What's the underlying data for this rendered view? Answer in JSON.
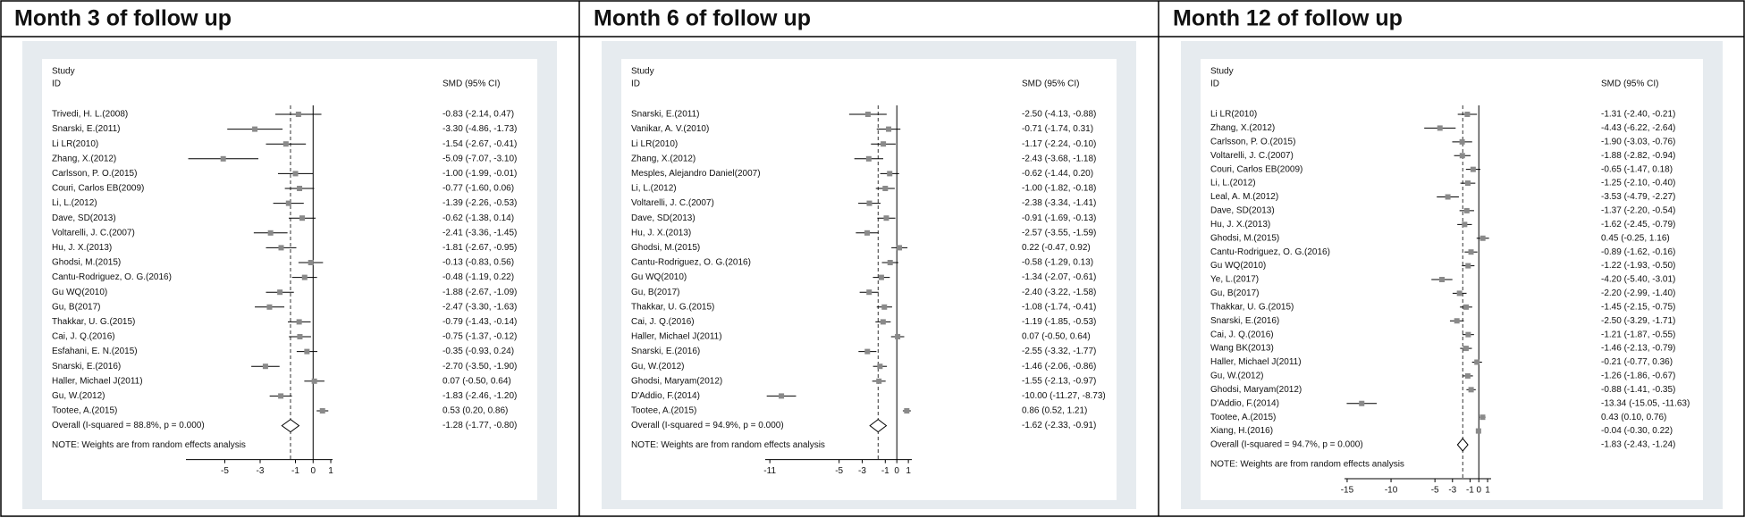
{
  "chart_data": [
    {
      "type": "forest",
      "title": "Month 3 of follow up",
      "study_header": "Study",
      "id_header": "ID",
      "effect_header": "SMD (95% CI)",
      "note": "NOTE: Weights are from random effects analysis",
      "categories": [
        "Trivedi, H. L.(2008)",
        "Snarski, E.(2011)",
        "Li LR(2010)",
        "Zhang, X.(2012)",
        "Carlsson, P. O.(2015)",
        "Couri, Carlos EB(2009)",
        "Li, L.(2012)",
        "Dave, SD(2013)",
        "Voltarelli, J. C.(2007)",
        "Hu, J. X.(2013)",
        "Ghodsi, M.(2015)",
        "Cantu-Rodriguez, O. G.(2016)",
        "Gu WQ(2010)",
        "Gu, B(2017)",
        "Thakkar, U. G.(2015)",
        "Cai, J. Q.(2016)",
        "Esfahani, E. N.(2015)",
        "Snarski, E.(2016)",
        "Haller, Michael J(2011)",
        "Gu, W.(2012)",
        "Tootee, A.(2015)"
      ],
      "values": [
        -0.83,
        -3.3,
        -1.54,
        -5.09,
        -1.0,
        -0.77,
        -1.39,
        -0.62,
        -2.41,
        -1.81,
        -0.13,
        -0.48,
        -1.88,
        -2.47,
        -0.79,
        -0.75,
        -0.35,
        -2.7,
        0.07,
        -1.83,
        0.53
      ],
      "lower": [
        -2.14,
        -4.86,
        -2.67,
        -7.07,
        -1.99,
        -1.6,
        -2.26,
        -1.38,
        -3.36,
        -2.67,
        -0.83,
        -1.19,
        -2.67,
        -3.3,
        -1.43,
        -1.37,
        -0.93,
        -3.5,
        -0.5,
        -2.46,
        0.2
      ],
      "upper": [
        0.47,
        -1.73,
        -0.41,
        -3.1,
        -0.01,
        0.06,
        -0.53,
        0.14,
        -1.45,
        -0.95,
        0.56,
        0.22,
        -1.09,
        -1.63,
        -0.14,
        -0.12,
        0.24,
        -1.9,
        0.64,
        -1.2,
        0.86
      ],
      "value_labels": [
        "-0.83 (-2.14, 0.47)",
        "-3.30 (-4.86, -1.73)",
        "-1.54 (-2.67, -0.41)",
        "-5.09 (-7.07, -3.10)",
        "-1.00 (-1.99, -0.01)",
        "-0.77 (-1.60, 0.06)",
        "-1.39 (-2.26, -0.53)",
        "-0.62 (-1.38, 0.14)",
        "-2.41 (-3.36, -1.45)",
        "-1.81 (-2.67, -0.95)",
        "-0.13 (-0.83, 0.56)",
        "-0.48 (-1.19, 0.22)",
        "-1.88 (-2.67, -1.09)",
        "-2.47 (-3.30, -1.63)",
        "-0.79 (-1.43, -0.14)",
        "-0.75 (-1.37, -0.12)",
        "-0.35 (-0.93, 0.24)",
        "-2.70 (-3.50, -1.90)",
        "0.07 (-0.50, 0.64)",
        "-1.83 (-2.46, -1.20)",
        "0.53 (0.20, 0.86)"
      ],
      "overall_label": "Overall  (I-squared = 88.8%, p = 0.000)",
      "overall_value": -1.28,
      "overall_lower": -1.77,
      "overall_upper": -0.8,
      "overall_value_label": "-1.28 (-1.77, -0.80)",
      "xlim": [
        -7.2,
        1.1
      ],
      "xticks": [
        -5,
        -3,
        -1,
        0,
        1
      ]
    },
    {
      "type": "forest",
      "title": "Month 6 of follow up",
      "study_header": "Study",
      "id_header": "ID",
      "effect_header": "SMD (95% CI)",
      "note": "NOTE: Weights are from random effects analysis",
      "categories": [
        "Snarski, E.(2011)",
        "Vanikar, A. V.(2010)",
        "Li LR(2010)",
        "Zhang, X.(2012)",
        "Mesples, Alejandro Daniel(2007)",
        "Li, L.(2012)",
        "Voltarelli, J. C.(2007)",
        "Dave, SD(2013)",
        "Hu, J. X.(2013)",
        "Ghodsi, M.(2015)",
        "Cantu-Rodriguez, O. G.(2016)",
        "Gu WQ(2010)",
        "Gu, B(2017)",
        "Thakkar, U. G.(2015)",
        "Cai, J. Q.(2016)",
        "Haller, Michael J(2011)",
        "Snarski, E.(2016)",
        "Gu, W.(2012)",
        "Ghodsi, Maryam(2012)",
        "D'Addio, F.(2014)",
        "Tootee, A.(2015)"
      ],
      "values": [
        -2.5,
        -0.71,
        -1.17,
        -2.43,
        -0.62,
        -1.0,
        -2.38,
        -0.91,
        -2.57,
        0.22,
        -0.58,
        -1.34,
        -2.4,
        -1.08,
        -1.19,
        0.07,
        -2.55,
        -1.46,
        -1.55,
        -10.0,
        0.86
      ],
      "lower": [
        -4.13,
        -1.74,
        -2.24,
        -3.68,
        -1.44,
        -1.82,
        -3.34,
        -1.69,
        -3.55,
        -0.47,
        -1.29,
        -2.07,
        -3.22,
        -1.74,
        -1.85,
        -0.5,
        -3.32,
        -2.06,
        -2.13,
        -11.27,
        0.52
      ],
      "upper": [
        -0.88,
        0.31,
        -0.1,
        -1.18,
        0.2,
        -0.18,
        -1.41,
        -0.13,
        -1.59,
        0.92,
        0.13,
        -0.61,
        -1.58,
        -0.41,
        -0.53,
        0.64,
        -1.77,
        -0.86,
        -0.97,
        -8.73,
        1.21
      ],
      "value_labels": [
        "-2.50 (-4.13, -0.88)",
        "-0.71 (-1.74, 0.31)",
        "-1.17 (-2.24, -0.10)",
        "-2.43 (-3.68, -1.18)",
        "-0.62 (-1.44, 0.20)",
        "-1.00 (-1.82, -0.18)",
        "-2.38 (-3.34, -1.41)",
        "-0.91 (-1.69, -0.13)",
        "-2.57 (-3.55, -1.59)",
        "0.22 (-0.47, 0.92)",
        "-0.58 (-1.29, 0.13)",
        "-1.34 (-2.07, -0.61)",
        "-2.40 (-3.22, -1.58)",
        "-1.08 (-1.74, -0.41)",
        "-1.19 (-1.85, -0.53)",
        "0.07 (-0.50, 0.64)",
        "-2.55 (-3.32, -1.77)",
        "-1.46 (-2.06, -0.86)",
        "-1.55 (-2.13, -0.97)",
        "-10.00 (-11.27, -8.73)",
        "0.86 (0.52, 1.21)"
      ],
      "overall_label": "Overall  (I-squared = 94.9%, p = 0.000)",
      "overall_value": -1.62,
      "overall_lower": -2.33,
      "overall_upper": -0.91,
      "overall_value_label": "-1.62 (-2.33, -0.91)",
      "xlim": [
        -11.4,
        1.3
      ],
      "xticks": [
        -11,
        -5,
        -3,
        -1,
        0,
        1
      ]
    },
    {
      "type": "forest",
      "title": "Month 12 of follow up",
      "study_header": "Study",
      "id_header": "ID",
      "effect_header": "SMD (95% CI)",
      "note": "NOTE: Weights are from random effects analysis",
      "categories": [
        "Li LR(2010)",
        "Zhang, X.(2012)",
        "Carlsson, P. O.(2015)",
        "Voltarelli, J. C.(2007)",
        "Couri, Carlos EB(2009)",
        "Li, L.(2012)",
        "Leal, A. M.(2012)",
        "Dave, SD(2013)",
        "Hu, J. X.(2013)",
        "Ghodsi, M.(2015)",
        "Cantu-Rodriguez, O. G.(2016)",
        "Gu WQ(2010)",
        "Ye, L.(2017)",
        "Gu, B(2017)",
        "Thakkar, U. G.(2015)",
        "Snarski, E.(2016)",
        "Cai, J. Q.(2016)",
        "Wang BK(2013)",
        "Haller, Michael J(2011)",
        "Gu, W.(2012)",
        "Ghodsi, Maryam(2012)",
        "D'Addio, F.(2014)",
        "Tootee, A.(2015)",
        "Xiang, H.(2016)"
      ],
      "values": [
        -1.31,
        -4.43,
        -1.9,
        -1.88,
        -0.65,
        -1.25,
        -3.53,
        -1.37,
        -1.62,
        0.45,
        -0.89,
        -1.22,
        -4.2,
        -2.2,
        -1.45,
        -2.5,
        -1.21,
        -1.46,
        -0.21,
        -1.26,
        -0.88,
        -13.34,
        0.43,
        -0.04
      ],
      "lower": [
        -2.4,
        -6.22,
        -3.03,
        -2.82,
        -1.47,
        -2.1,
        -4.79,
        -2.2,
        -2.45,
        -0.25,
        -1.62,
        -1.93,
        -5.4,
        -2.99,
        -2.15,
        -3.29,
        -1.87,
        -2.13,
        -0.77,
        -1.86,
        -1.41,
        -15.05,
        0.1,
        -0.3
      ],
      "upper": [
        -0.21,
        -2.64,
        -0.76,
        -0.94,
        0.18,
        -0.4,
        -2.27,
        -0.54,
        -0.79,
        1.16,
        -0.16,
        -0.5,
        -3.01,
        -1.4,
        -0.75,
        -1.71,
        -0.55,
        -0.79,
        0.36,
        -0.67,
        -0.35,
        -11.63,
        0.76,
        0.22
      ],
      "value_labels": [
        "-1.31 (-2.40, -0.21)",
        "-4.43 (-6.22, -2.64)",
        "-1.90 (-3.03, -0.76)",
        "-1.88 (-2.82, -0.94)",
        "-0.65 (-1.47, 0.18)",
        "-1.25 (-2.10, -0.40)",
        "-3.53 (-4.79, -2.27)",
        "-1.37 (-2.20, -0.54)",
        "-1.62 (-2.45, -0.79)",
        "0.45 (-0.25, 1.16)",
        "-0.89 (-1.62, -0.16)",
        "-1.22 (-1.93, -0.50)",
        "-4.20 (-5.40, -3.01)",
        "-2.20 (-2.99, -1.40)",
        "-1.45 (-2.15, -0.75)",
        "-2.50 (-3.29, -1.71)",
        "-1.21 (-1.87, -0.55)",
        "-1.46 (-2.13, -0.79)",
        "-0.21 (-0.77, 0.36)",
        "-1.26 (-1.86, -0.67)",
        "-0.88 (-1.41, -0.35)",
        "-13.34 (-15.05, -11.63)",
        "0.43 (0.10, 0.76)",
        "-0.04 (-0.30, 0.22)"
      ],
      "overall_label": "Overall  (I-squared = 94.7%, p = 0.000)",
      "overall_value": -1.83,
      "overall_lower": -2.43,
      "overall_upper": -1.24,
      "overall_value_label": "-1.83 (-2.43, -1.24)",
      "xlim": [
        -15.3,
        1.4
      ],
      "xticks": [
        -15,
        -10,
        -5,
        -3,
        -1,
        0,
        1
      ]
    }
  ]
}
